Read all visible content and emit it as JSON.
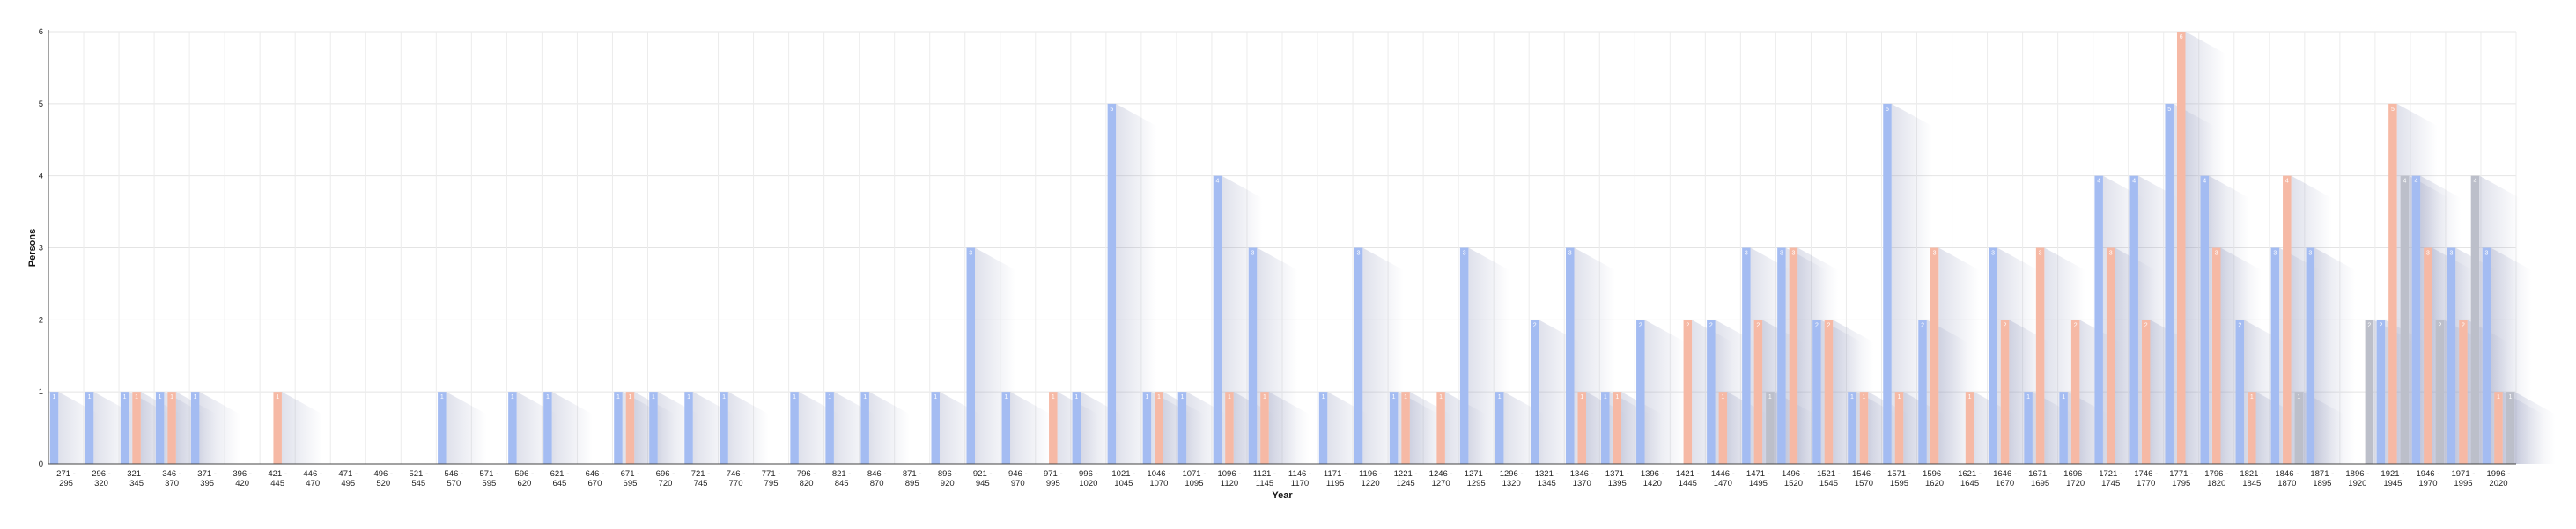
{
  "chart_data": {
    "type": "bar",
    "xlabel": "Year",
    "ylabel": "Persons",
    "ylim": [
      0,
      6
    ],
    "yticks": [
      0,
      1,
      2,
      3,
      4,
      5,
      6
    ],
    "grid": true,
    "legend": "none",
    "categories": [
      [
        "271 -",
        "295"
      ],
      [
        "296 -",
        "320"
      ],
      [
        "321 -",
        "345"
      ],
      [
        "346 -",
        "370"
      ],
      [
        "371 -",
        "395"
      ],
      [
        "396 -",
        "420"
      ],
      [
        "421 -",
        "445"
      ],
      [
        "446 -",
        "470"
      ],
      [
        "471 -",
        "495"
      ],
      [
        "496 -",
        "520"
      ],
      [
        "521 -",
        "545"
      ],
      [
        "546 -",
        "570"
      ],
      [
        "571 -",
        "595"
      ],
      [
        "596 -",
        "620"
      ],
      [
        "621 -",
        "645"
      ],
      [
        "646 -",
        "670"
      ],
      [
        "671 -",
        "695"
      ],
      [
        "696 -",
        "720"
      ],
      [
        "721 -",
        "745"
      ],
      [
        "746 -",
        "770"
      ],
      [
        "771 -",
        "795"
      ],
      [
        "796 -",
        "820"
      ],
      [
        "821 -",
        "845"
      ],
      [
        "846 -",
        "870"
      ],
      [
        "871 -",
        "895"
      ],
      [
        "896 -",
        "920"
      ],
      [
        "921 -",
        "945"
      ],
      [
        "946 -",
        "970"
      ],
      [
        "971 -",
        "995"
      ],
      [
        "996 -",
        "1020"
      ],
      [
        "1021 -",
        "1045"
      ],
      [
        "1046 -",
        "1070"
      ],
      [
        "1071 -",
        "1095"
      ],
      [
        "1096 -",
        "1120"
      ],
      [
        "1121 -",
        "1145"
      ],
      [
        "1146 -",
        "1170"
      ],
      [
        "1171 -",
        "1195"
      ],
      [
        "1196 -",
        "1220"
      ],
      [
        "1221 -",
        "1245"
      ],
      [
        "1246 -",
        "1270"
      ],
      [
        "1271 -",
        "1295"
      ],
      [
        "1296 -",
        "1320"
      ],
      [
        "1321 -",
        "1345"
      ],
      [
        "1346 -",
        "1370"
      ],
      [
        "1371 -",
        "1395"
      ],
      [
        "1396 -",
        "1420"
      ],
      [
        "1421 -",
        "1445"
      ],
      [
        "1446 -",
        "1470"
      ],
      [
        "1471 -",
        "1495"
      ],
      [
        "1496 -",
        "1520"
      ],
      [
        "1521 -",
        "1545"
      ],
      [
        "1546 -",
        "1570"
      ],
      [
        "1571 -",
        "1595"
      ],
      [
        "1596 -",
        "1620"
      ],
      [
        "1621 -",
        "1645"
      ],
      [
        "1646 -",
        "1670"
      ],
      [
        "1671 -",
        "1695"
      ],
      [
        "1696 -",
        "1720"
      ],
      [
        "1721 -",
        "1745"
      ],
      [
        "1746 -",
        "1770"
      ],
      [
        "1771 -",
        "1795"
      ],
      [
        "1796 -",
        "1820"
      ],
      [
        "1821 -",
        "1845"
      ],
      [
        "1846 -",
        "1870"
      ],
      [
        "1871 -",
        "1895"
      ],
      [
        "1896 -",
        "1920"
      ],
      [
        "1921 -",
        "1945"
      ],
      [
        "1946 -",
        "1970"
      ],
      [
        "1971 -",
        "1995"
      ],
      [
        "1996 -",
        "2020"
      ]
    ],
    "series": [
      {
        "color": "#a4bcf2",
        "values": [
          1,
          1,
          1,
          1,
          1,
          0,
          0,
          0,
          0,
          0,
          0,
          1,
          0,
          1,
          1,
          0,
          1,
          1,
          1,
          1,
          0,
          1,
          1,
          1,
          0,
          1,
          3,
          1,
          0,
          1,
          5,
          1,
          1,
          4,
          3,
          0,
          1,
          3,
          1,
          0,
          3,
          1,
          2,
          3,
          1,
          2,
          0,
          2,
          3,
          3,
          2,
          1,
          5,
          2,
          0,
          3,
          1,
          1,
          4,
          4,
          5,
          4,
          2,
          3,
          3,
          0,
          2,
          4,
          3,
          3
        ]
      },
      {
        "color": "#f6b9a5",
        "values": [
          0,
          0,
          1,
          1,
          0,
          0,
          1,
          0,
          0,
          0,
          0,
          0,
          0,
          0,
          0,
          0,
          1,
          0,
          0,
          0,
          0,
          0,
          0,
          0,
          0,
          0,
          0,
          0,
          1,
          0,
          0,
          1,
          0,
          1,
          1,
          0,
          0,
          0,
          1,
          1,
          0,
          0,
          0,
          1,
          1,
          0,
          2,
          1,
          2,
          3,
          2,
          1,
          1,
          3,
          1,
          2,
          3,
          2,
          3,
          2,
          6,
          3,
          1,
          4,
          0,
          0,
          5,
          3,
          2,
          1
        ]
      },
      {
        "color": "#bcbfca",
        "values": [
          0,
          0,
          0,
          0,
          0,
          0,
          0,
          0,
          0,
          0,
          0,
          0,
          0,
          0,
          0,
          0,
          0,
          0,
          0,
          0,
          0,
          0,
          0,
          0,
          0,
          0,
          0,
          0,
          0,
          0,
          0,
          0,
          0,
          0,
          0,
          0,
          0,
          0,
          0,
          0,
          0,
          0,
          0,
          0,
          0,
          0,
          0,
          0,
          1,
          0,
          0,
          0,
          0,
          0,
          0,
          0,
          0,
          0,
          0,
          0,
          0,
          0,
          0,
          1,
          0,
          2,
          4,
          2,
          4,
          1
        ]
      }
    ]
  }
}
